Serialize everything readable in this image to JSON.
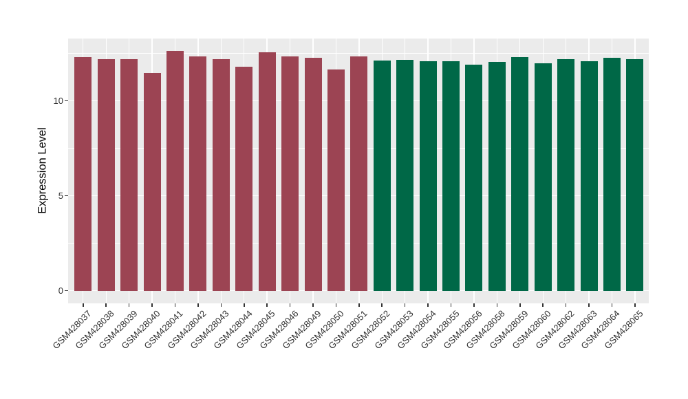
{
  "chart_data": {
    "type": "bar",
    "title": "",
    "xlabel": "",
    "ylabel": "Expression Level",
    "ylim": [
      0,
      13.25
    ],
    "yticks": [
      0,
      5,
      10
    ],
    "ytick_labels": [
      "0",
      "5",
      "10"
    ],
    "yticks_minor": [
      2.5,
      7.5,
      12.5
    ],
    "grid": "white major+minor horizontal lines and white vertical lines at category centers on gray panel",
    "legend": "none",
    "categories": [
      "GSM428037",
      "GSM428038",
      "GSM428039",
      "GSM428040",
      "GSM428041",
      "GSM428042",
      "GSM428043",
      "GSM428044",
      "GSM428045",
      "GSM428046",
      "GSM428049",
      "GSM428050",
      "GSM428051",
      "GSM428052",
      "GSM428053",
      "GSM428054",
      "GSM428055",
      "GSM428056",
      "GSM428058",
      "GSM428059",
      "GSM428060",
      "GSM428062",
      "GSM428063",
      "GSM428064",
      "GSM428065"
    ],
    "values": [
      12.31,
      12.21,
      12.19,
      11.47,
      12.61,
      12.32,
      12.19,
      11.78,
      12.54,
      12.32,
      12.27,
      11.64,
      12.34,
      12.12,
      12.17,
      12.1,
      12.1,
      11.92,
      12.05,
      12.3,
      11.97,
      12.21,
      12.08,
      12.25,
      12.19
    ],
    "groups": [
      "group1",
      "group1",
      "group1",
      "group1",
      "group1",
      "group1",
      "group1",
      "group1",
      "group1",
      "group1",
      "group1",
      "group1",
      "group1",
      "group2",
      "group2",
      "group2",
      "group2",
      "group2",
      "group2",
      "group2",
      "group2",
      "group2",
      "group2",
      "group2",
      "group2"
    ],
    "group_colors": {
      "group1": "#9C4453",
      "group2": "#006847"
    },
    "colors": {
      "panel_background": "#EBEBEB",
      "grid_line": "#FFFFFF",
      "axis_text": "#303030",
      "axis_title": "#000000",
      "figure_background": "#FFFFFF"
    }
  }
}
